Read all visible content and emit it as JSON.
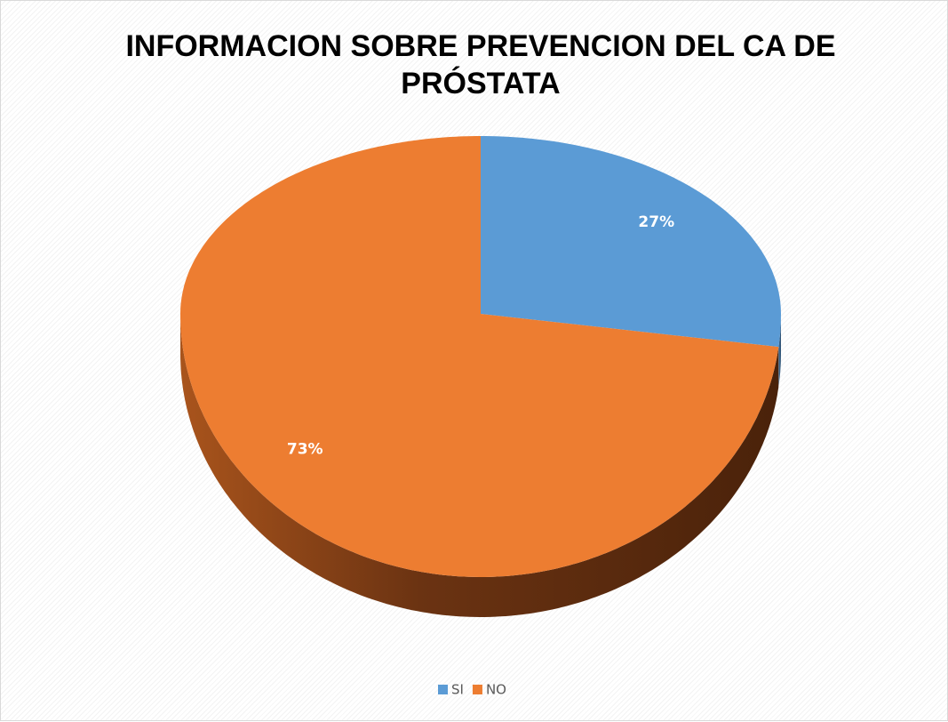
{
  "chart_data": {
    "type": "pie",
    "title": "INFORMACION SOBRE PREVENCION DEL CA DE PRÓSTATA",
    "categories": [
      "SI",
      "NO"
    ],
    "values": [
      27,
      73
    ],
    "value_labels": [
      "27%",
      "73%"
    ],
    "colors": [
      "#5b9bd5",
      "#ed7d31"
    ],
    "legend": "bottom"
  }
}
